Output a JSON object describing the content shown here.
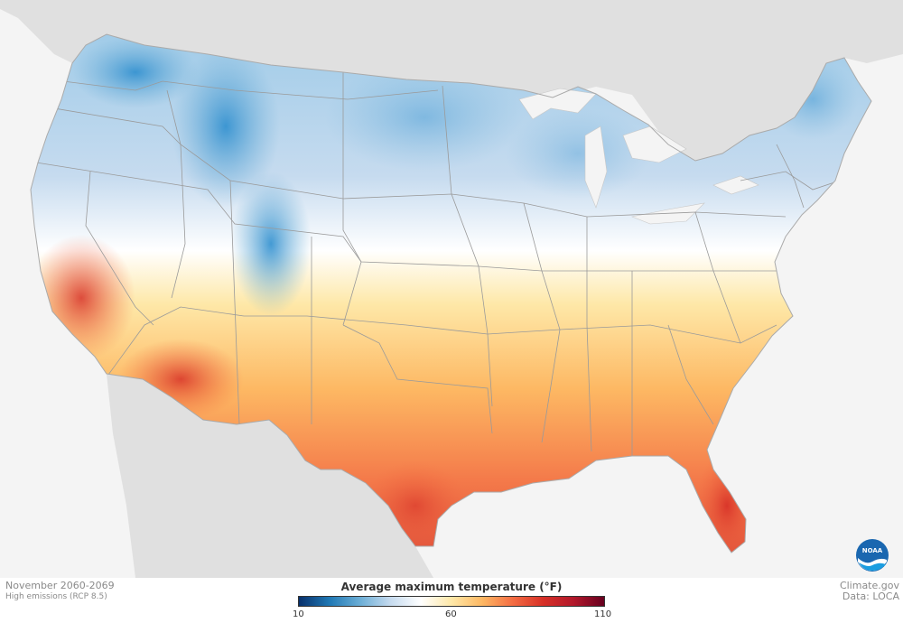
{
  "map": {
    "period": "November 2060-2069",
    "scenario": "High emissions (RCP 8.5)",
    "legend": {
      "title": "Average maximum temperature (°F)",
      "unit": "°F",
      "min": 10,
      "mid": 60,
      "max": 110,
      "tick_min": "10",
      "tick_mid": "60",
      "tick_max": "110",
      "colors": [
        "#08306b",
        "#1f78b4",
        "#6baed6",
        "#c6dbef",
        "#ffffff",
        "#fee8a8",
        "#fdb863",
        "#f46d43",
        "#d73027",
        "#b2182b",
        "#67001f"
      ]
    },
    "credit": "Climate.gov",
    "data_source": "Data: LOCA",
    "logo_text": "NOAA",
    "colors": {
      "land_outside": "#e0e0e0",
      "water": "#f4f4f4",
      "state_border": "#9a9a9a"
    }
  }
}
